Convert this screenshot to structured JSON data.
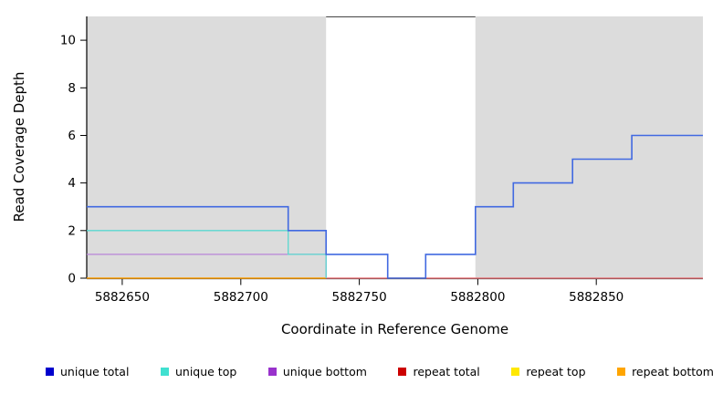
{
  "chart_data": {
    "type": "line",
    "subtype": "step-coverage-plot",
    "title": "",
    "xlabel": "Coordinate in Reference Genome",
    "ylabel": "Read Coverage Depth",
    "xlim": [
      5882635,
      5882895
    ],
    "ylim": [
      0,
      11
    ],
    "grid": false,
    "xtick_values": [
      5882650,
      5882700,
      5882750,
      5882800,
      5882850
    ],
    "xtick_labels": [
      "5882650",
      "5882700",
      "5882750",
      "5882800",
      "5882850"
    ],
    "ytick_values": [
      0,
      2,
      4,
      6,
      8,
      10
    ],
    "ytick_labels": [
      "0",
      "2",
      "4",
      "6",
      "8",
      "10"
    ],
    "shaded_regions": [
      {
        "x0": 5882635,
        "x1": 5882736,
        "color": "#DCDCDC"
      },
      {
        "x0": 5882799,
        "x1": 5882895,
        "color": "#DCDCDC"
      }
    ],
    "gap_top_border": {
      "x0": 5882736,
      "x1": 5882799,
      "color": "#444444"
    },
    "series": [
      {
        "name": "repeat top",
        "line_color": "#FFE800",
        "points": [
          [
            5882635,
            0
          ],
          [
            5882895,
            0
          ]
        ]
      },
      {
        "name": "repeat total",
        "line_color": "#E8688F",
        "points": [
          [
            5882635,
            0
          ],
          [
            5882895,
            0
          ]
        ]
      },
      {
        "name": "repeat bottom",
        "line_color": "#FFA500",
        "points": [
          [
            5882635,
            0
          ],
          [
            5882736,
            0
          ]
        ]
      },
      {
        "name": "unique bottom",
        "line_color": "#B983D8",
        "points": [
          [
            5882635,
            1
          ],
          [
            5882736,
            0
          ]
        ]
      },
      {
        "name": "unique top",
        "line_color": "#5BD8D0",
        "points": [
          [
            5882635,
            2
          ],
          [
            5882720,
            1
          ],
          [
            5882736,
            0
          ]
        ]
      },
      {
        "name": "unique total",
        "line_color": "#4169E1",
        "points": [
          [
            5882635,
            3
          ],
          [
            5882720,
            2
          ],
          [
            5882736,
            1
          ],
          [
            5882762,
            0
          ],
          [
            5882778,
            1
          ],
          [
            5882799,
            3
          ],
          [
            5882815,
            4
          ],
          [
            5882840,
            5
          ],
          [
            5882865,
            6
          ],
          [
            5882895,
            6
          ]
        ]
      }
    ],
    "legend": [
      {
        "label": "unique total",
        "color": "#0000CD"
      },
      {
        "label": "unique top",
        "color": "#40E0D0"
      },
      {
        "label": "unique bottom",
        "color": "#9932CC"
      },
      {
        "label": "repeat total",
        "color": "#CC0000"
      },
      {
        "label": "repeat top",
        "color": "#FFE800"
      },
      {
        "label": "repeat bottom",
        "color": "#FFA500"
      }
    ]
  }
}
